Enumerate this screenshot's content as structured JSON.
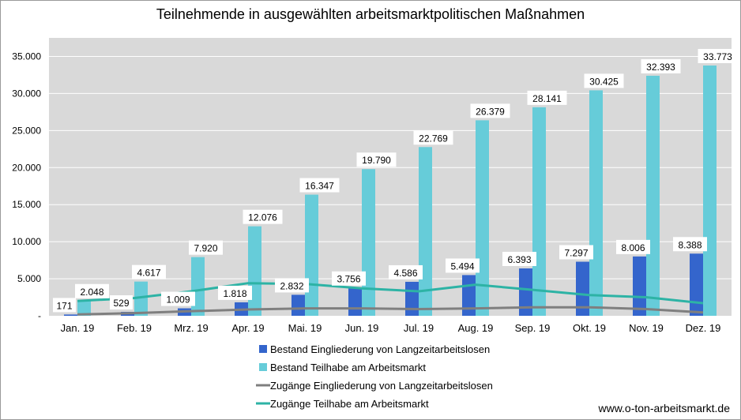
{
  "chart_data": {
    "type": "bar",
    "title": "Teilnehmende in ausgewählten arbeitsmarktpolitischen Maßnahmen",
    "categories": [
      "Jan. 19",
      "Feb. 19",
      "Mrz. 19",
      "Apr. 19",
      "Mai. 19",
      "Jun. 19",
      "Jul. 19",
      "Aug. 19",
      "Sep. 19",
      "Okt. 19",
      "Nov. 19",
      "Dez. 19"
    ],
    "ylim": [
      0,
      37500
    ],
    "yticks": [
      {
        "value": 0,
        "label": "-"
      },
      {
        "value": 5000,
        "label": "5.000"
      },
      {
        "value": 10000,
        "label": "10.000"
      },
      {
        "value": 15000,
        "label": "15.000"
      },
      {
        "value": 20000,
        "label": "20.000"
      },
      {
        "value": 25000,
        "label": "25.000"
      },
      {
        "value": 30000,
        "label": "30.000"
      },
      {
        "value": 35000,
        "label": "35.000"
      }
    ],
    "grid": true,
    "legend_position": "bottom",
    "series": [
      {
        "name": "Bestand Eingliederung von Langzeitarbeitslosen",
        "kind": "bar",
        "color": "#3465cc",
        "values": [
          171,
          529,
          1009,
          1818,
          2832,
          3756,
          4586,
          5494,
          6393,
          7297,
          8006,
          8388
        ],
        "labels": [
          "171",
          "529",
          "1.009",
          "1.818",
          "2.832",
          "3.756",
          "4.586",
          "5.494",
          "6.393",
          "7.297",
          "8.006",
          "8.388"
        ]
      },
      {
        "name": "Bestand Teilhabe am Arbeitsmarkt",
        "kind": "bar",
        "color": "#66ccd9",
        "values": [
          2048,
          4617,
          7920,
          12076,
          16347,
          19790,
          22769,
          26379,
          28141,
          30425,
          32393,
          33773
        ],
        "labels": [
          "2.048",
          "4.617",
          "7.920",
          "12.076",
          "16.347",
          "19.790",
          "22.769",
          "26.379",
          "28.141",
          "30.425",
          "32.393",
          "33.773"
        ]
      },
      {
        "name": "Zugänge Eingliederung von Langzeitarbeitslosen",
        "kind": "line",
        "color": "#7f7f7f",
        "values": [
          180,
          360,
          620,
          850,
          1000,
          1000,
          900,
          1000,
          1150,
          1150,
          900,
          450
        ]
      },
      {
        "name": "Zugänge Teilhabe am Arbeitsmarkt",
        "kind": "line",
        "color": "#2db3a5",
        "values": [
          2000,
          2400,
          3300,
          4400,
          4300,
          3700,
          3300,
          4200,
          3500,
          2800,
          2500,
          1700
        ]
      }
    ]
  },
  "footer": {
    "credit": "www.o-ton-arbeitsmarkt.de"
  }
}
